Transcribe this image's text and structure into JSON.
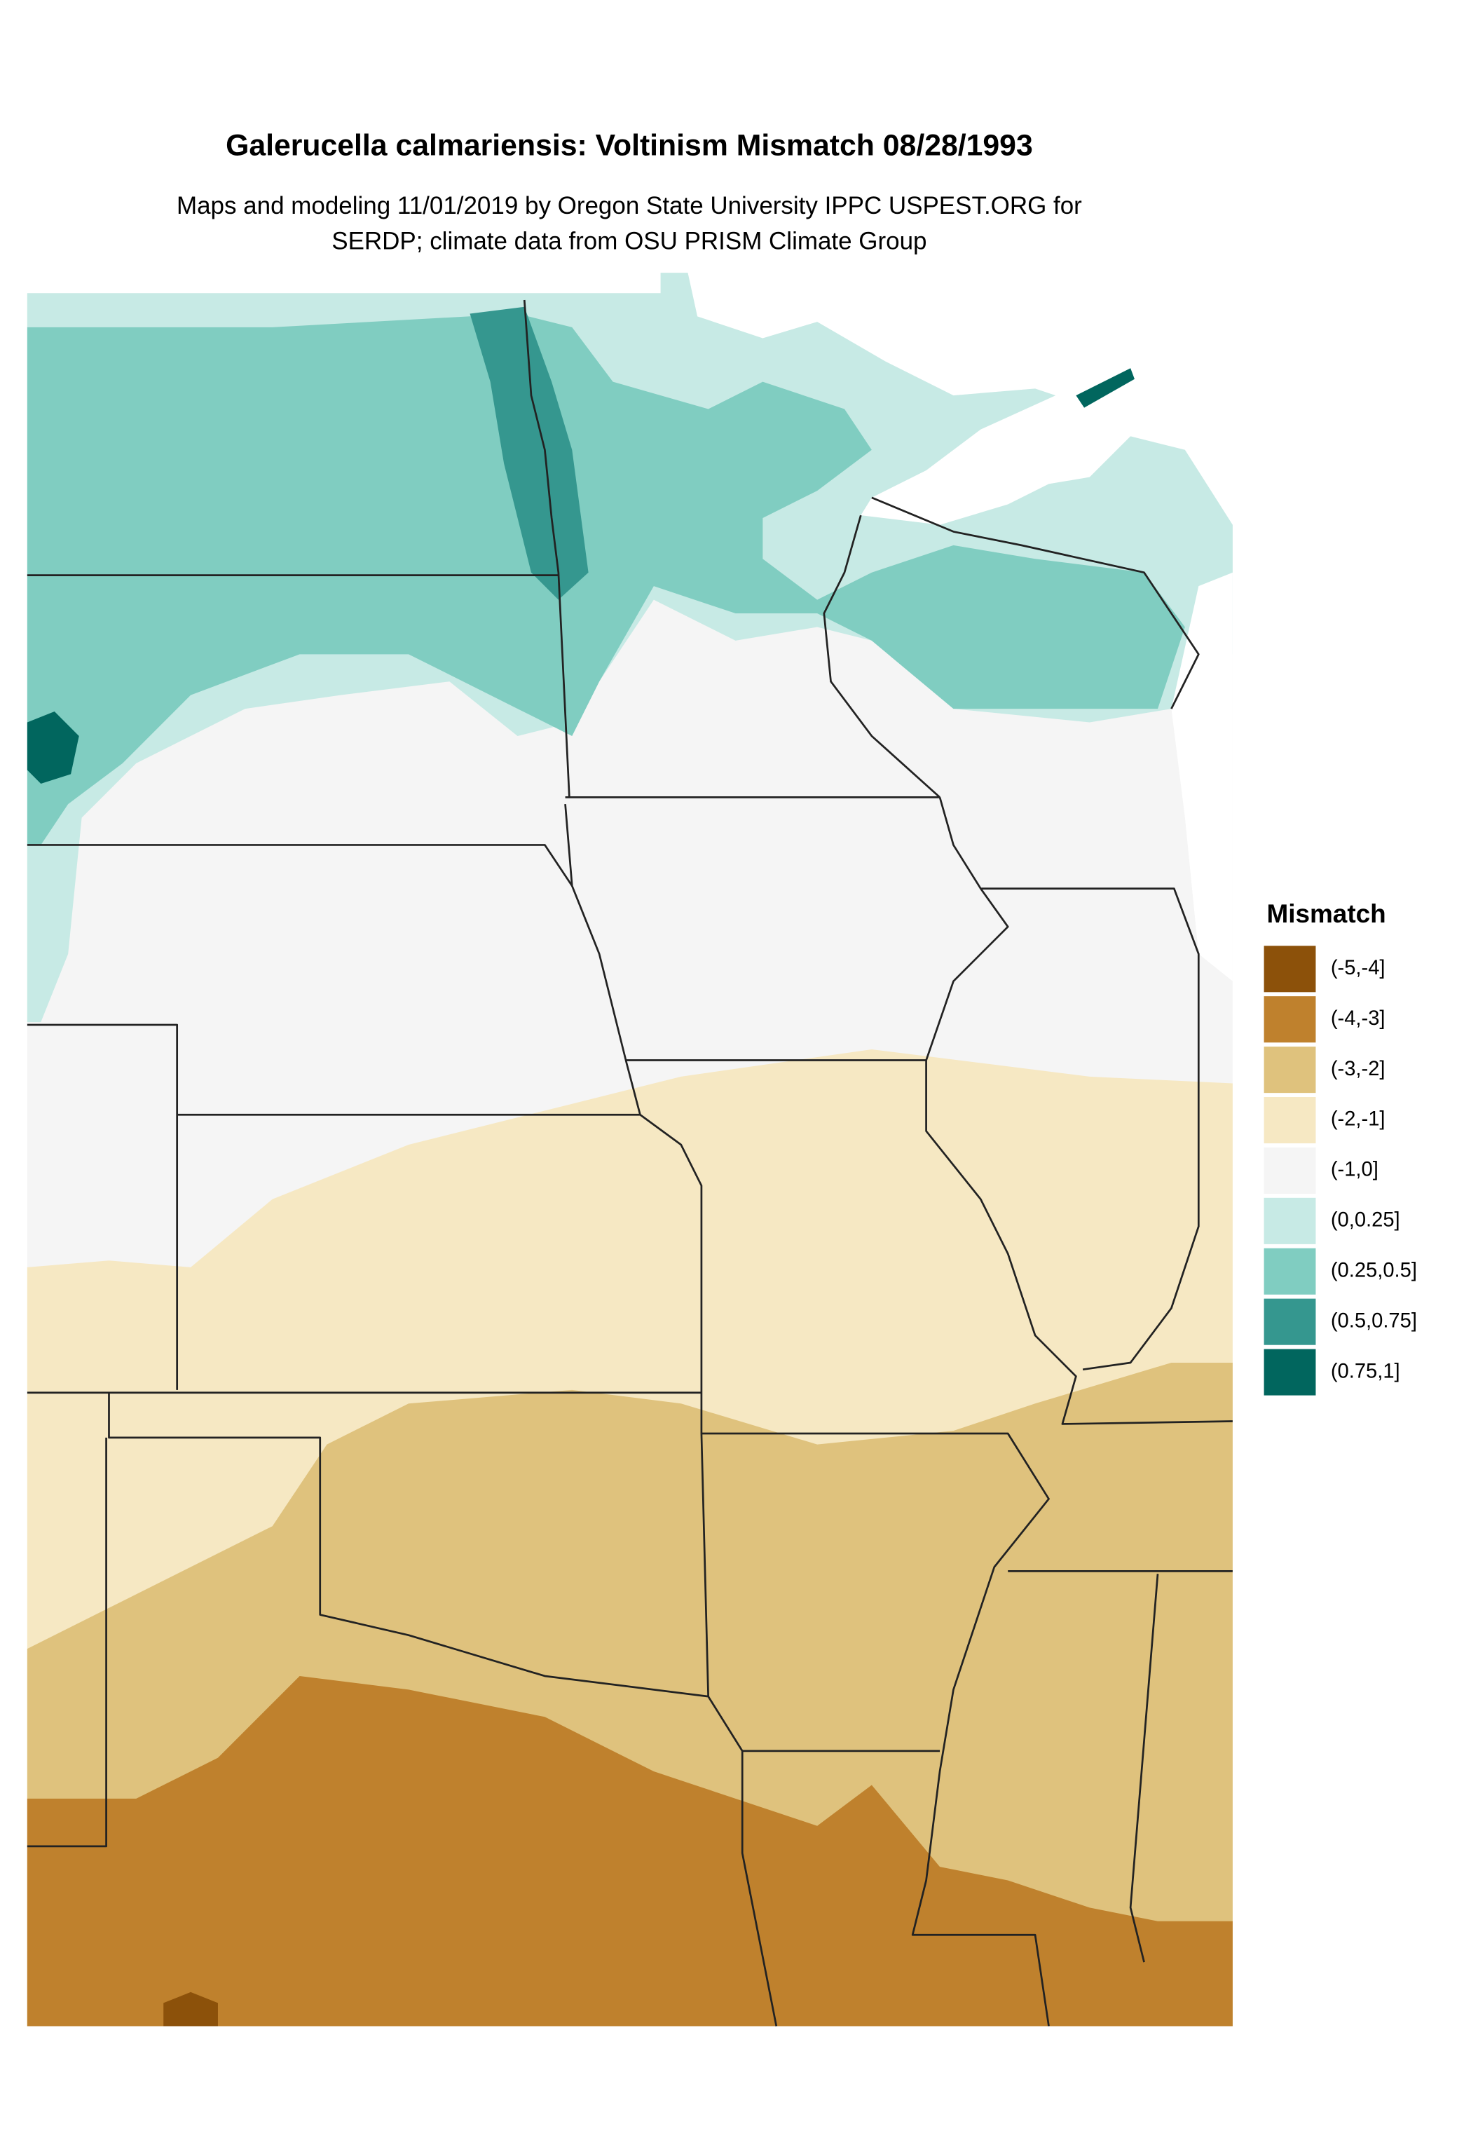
{
  "header": {
    "title": "Galerucella calmariensis: Voltinism Mismatch 08/28/1993",
    "subtitle_lines": [
      "Maps and modeling 11/01/2019 by Oregon State University IPPC USPEST.ORG for",
      "SERDP; climate data from OSU PRISM Climate Group"
    ]
  },
  "legend": {
    "title": "Mismatch",
    "entries": [
      {
        "label": "(-5,-4]",
        "color": "#8c510a"
      },
      {
        "label": "(-4,-3]",
        "color": "#bf812d"
      },
      {
        "label": "(-3,-2]",
        "color": "#dfc27d"
      },
      {
        "label": "(-2,-1]",
        "color": "#f6e8c3"
      },
      {
        "label": "(-1,0]",
        "color": "#f5f5f5"
      },
      {
        "label": "(0,0.25]",
        "color": "#c7eae5"
      },
      {
        "label": "(0.25,0.5]",
        "color": "#80cdc1"
      },
      {
        "label": "(0.5,0.75]",
        "color": "#35978f"
      },
      {
        "label": "(0.75,1]",
        "color": "#01665e"
      }
    ]
  }
}
